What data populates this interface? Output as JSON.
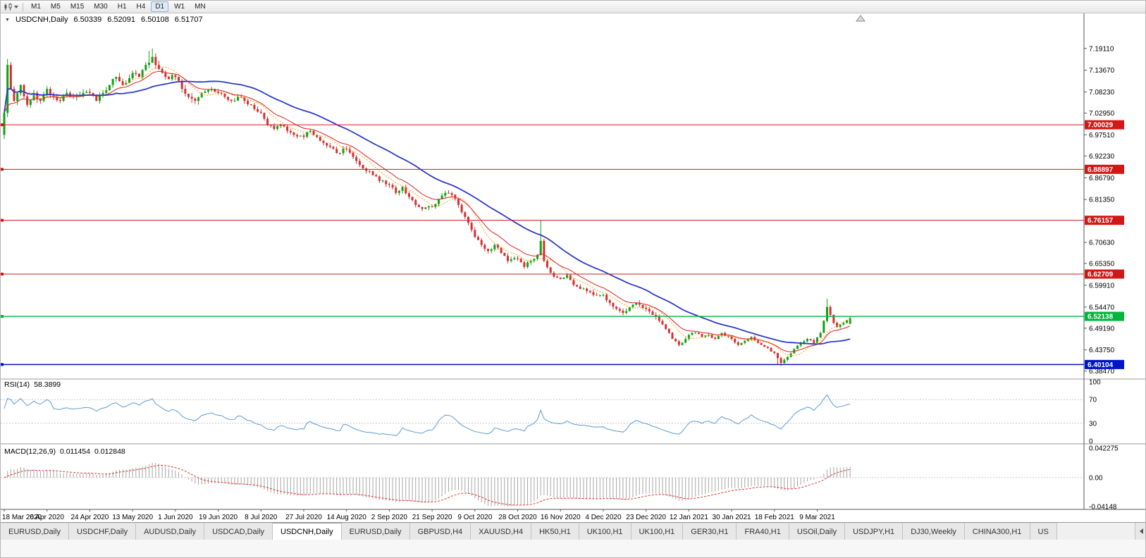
{
  "toolbar": {
    "timeframes": [
      "M1",
      "M5",
      "M15",
      "M30",
      "H1",
      "H4",
      "D1",
      "W1",
      "MN"
    ],
    "active": "D1"
  },
  "chart": {
    "title": "USDCNH,Daily",
    "ohlc": {
      "open": "6.50339",
      "high": "6.52091",
      "low": "6.50108",
      "close": "6.51707"
    },
    "icons": {
      "collapse": "▼"
    },
    "colors": {
      "up": "#12A112",
      "down": "#D43030",
      "axis_text": "#000000",
      "background": "#FFFFFF"
    },
    "y_axis_ticks": [
      "7.19110",
      "7.13670",
      "7.08230",
      "7.02950",
      "6.97510",
      "6.92230",
      "6.86790",
      "6.81350",
      "6.70630",
      "6.65350",
      "6.59910",
      "6.54470",
      "6.49190",
      "6.43750",
      "6.38470"
    ],
    "h_lines": [
      {
        "label": "7.00029",
        "price": 7.00029,
        "color": "#D01818",
        "width": 1
      },
      {
        "label": "6.88897",
        "price": 6.88897,
        "color": "#D01818",
        "width": 1
      },
      {
        "label": "6.76157",
        "price": 6.76157,
        "color": "#D01818",
        "width": 1
      },
      {
        "label": "6.62709",
        "price": 6.62709,
        "color": "#D01818",
        "width": 1
      },
      {
        "label": "6.52138",
        "price": 6.52138,
        "color": "#00B43C",
        "width": 1.4
      },
      {
        "label": "6.40104",
        "price": 6.40104,
        "color": "#0014C8",
        "width": 1.4
      }
    ],
    "x_labels": [
      {
        "label": "18 Mar 2020",
        "bar": 0
      },
      {
        "label": "6 Apr 2020",
        "bar": 13
      },
      {
        "label": "24 Apr 2020",
        "bar": 26
      },
      {
        "label": "13 May 2020",
        "bar": 39
      },
      {
        "label": "1 Jun 2020",
        "bar": 52
      },
      {
        "label": "19 Jun 2020",
        "bar": 65
      },
      {
        "label": "8 Jul 2020",
        "bar": 78
      },
      {
        "label": "27 Jul 2020",
        "bar": 91
      },
      {
        "label": "14 Aug 2020",
        "bar": 104
      },
      {
        "label": "2 Sep 2020",
        "bar": 117
      },
      {
        "label": "21 Sep 2020",
        "bar": 130
      },
      {
        "label": "9 Oct 2020",
        "bar": 143
      },
      {
        "label": "28 Oct 2020",
        "bar": 156
      },
      {
        "label": "16 Nov 2020",
        "bar": 169
      },
      {
        "label": "4 Dec 2020",
        "bar": 182
      },
      {
        "label": "23 Dec 2020",
        "bar": 195
      },
      {
        "label": "12 Jan 2021",
        "bar": 208
      },
      {
        "label": "30 Jan 2021",
        "bar": 221
      },
      {
        "label": "18 Feb 2021",
        "bar": 234
      },
      {
        "label": "9 Mar 2021",
        "bar": 247
      }
    ]
  },
  "chart_data": {
    "type": "candlestick",
    "symbol": "USDCNH",
    "period": "Daily",
    "bars": 258,
    "last_ohlc": {
      "open": 6.50339,
      "high": 6.52091,
      "low": 6.50108,
      "close": 6.51707
    },
    "horizontal_levels": [
      7.00029,
      6.88897,
      6.76157,
      6.62709,
      6.52138,
      6.40104
    ],
    "price_anchors": [
      [
        0,
        7.03
      ],
      [
        1,
        7.15
      ],
      [
        2,
        7.09
      ],
      [
        3,
        7.06
      ],
      [
        5,
        7.1
      ],
      [
        7,
        7.05
      ],
      [
        9,
        7.08
      ],
      [
        11,
        7.06
      ],
      [
        13,
        7.09
      ],
      [
        15,
        7.07
      ],
      [
        17,
        7.06
      ],
      [
        19,
        7.08
      ],
      [
        21,
        7.07
      ],
      [
        24,
        7.08
      ],
      [
        26,
        7.08
      ],
      [
        28,
        7.06
      ],
      [
        30,
        7.08
      ],
      [
        32,
        7.1
      ],
      [
        34,
        7.12
      ],
      [
        36,
        7.1
      ],
      [
        39,
        7.13
      ],
      [
        41,
        7.12
      ],
      [
        43,
        7.15
      ],
      [
        45,
        7.17
      ],
      [
        47,
        7.14
      ],
      [
        49,
        7.12
      ],
      [
        52,
        7.12
      ],
      [
        54,
        7.09
      ],
      [
        56,
        7.07
      ],
      [
        58,
        7.06
      ],
      [
        60,
        7.08
      ],
      [
        63,
        7.09
      ],
      [
        65,
        7.08
      ],
      [
        67,
        7.07
      ],
      [
        69,
        7.06
      ],
      [
        71,
        7.07
      ],
      [
        73,
        7.06
      ],
      [
        75,
        7.05
      ],
      [
        78,
        7.03
      ],
      [
        80,
        7.0
      ],
      [
        82,
        6.99
      ],
      [
        84,
        7.0
      ],
      [
        86,
        6.985
      ],
      [
        88,
        6.975
      ],
      [
        91,
        6.97
      ],
      [
        93,
        6.985
      ],
      [
        95,
        6.97
      ],
      [
        97,
        6.955
      ],
      [
        99,
        6.945
      ],
      [
        101,
        6.93
      ],
      [
        104,
        6.94
      ],
      [
        106,
        6.92
      ],
      [
        108,
        6.9
      ],
      [
        110,
        6.885
      ],
      [
        112,
        6.875
      ],
      [
        114,
        6.86
      ],
      [
        117,
        6.85
      ],
      [
        119,
        6.83
      ],
      [
        121,
        6.845
      ],
      [
        123,
        6.82
      ],
      [
        125,
        6.8
      ],
      [
        127,
        6.79
      ],
      [
        130,
        6.795
      ],
      [
        132,
        6.815
      ],
      [
        134,
        6.83
      ],
      [
        136,
        6.825
      ],
      [
        138,
        6.8
      ],
      [
        140,
        6.77
      ],
      [
        143,
        6.72
      ],
      [
        145,
        6.7
      ],
      [
        147,
        6.685
      ],
      [
        149,
        6.7
      ],
      [
        151,
        6.68
      ],
      [
        153,
        6.66
      ],
      [
        156,
        6.665
      ],
      [
        158,
        6.645
      ],
      [
        160,
        6.66
      ],
      [
        162,
        6.675
      ],
      [
        163,
        6.71
      ],
      [
        164,
        6.66
      ],
      [
        166,
        6.63
      ],
      [
        169,
        6.615
      ],
      [
        171,
        6.625
      ],
      [
        173,
        6.6
      ],
      [
        175,
        6.59
      ],
      [
        177,
        6.585
      ],
      [
        179,
        6.575
      ],
      [
        182,
        6.575
      ],
      [
        184,
        6.555
      ],
      [
        186,
        6.54
      ],
      [
        188,
        6.53
      ],
      [
        190,
        6.545
      ],
      [
        192,
        6.555
      ],
      [
        195,
        6.54
      ],
      [
        197,
        6.525
      ],
      [
        199,
        6.51
      ],
      [
        201,
        6.49
      ],
      [
        203,
        6.465
      ],
      [
        205,
        6.45
      ],
      [
        207,
        6.465
      ],
      [
        208,
        6.475
      ],
      [
        210,
        6.48
      ],
      [
        212,
        6.47
      ],
      [
        214,
        6.475
      ],
      [
        216,
        6.465
      ],
      [
        218,
        6.48
      ],
      [
        221,
        6.465
      ],
      [
        223,
        6.45
      ],
      [
        225,
        6.46
      ],
      [
        227,
        6.47
      ],
      [
        229,
        6.455
      ],
      [
        231,
        6.445
      ],
      [
        234,
        6.43
      ],
      [
        236,
        6.405
      ],
      [
        238,
        6.42
      ],
      [
        240,
        6.44
      ],
      [
        242,
        6.455
      ],
      [
        244,
        6.465
      ],
      [
        246,
        6.455
      ],
      [
        248,
        6.48
      ],
      [
        249,
        6.51
      ],
      [
        250,
        6.545
      ],
      [
        251,
        6.525
      ],
      [
        252,
        6.505
      ],
      [
        253,
        6.495
      ],
      [
        255,
        6.505
      ],
      [
        257,
        6.517
      ]
    ],
    "spikes": [
      {
        "bar": 1,
        "high": 7.165,
        "low": 7.02
      },
      {
        "bar": 44,
        "high": 7.185
      },
      {
        "bar": 45,
        "high": 7.191
      },
      {
        "bar": 163,
        "high": 6.762
      },
      {
        "bar": 235,
        "low": 6.401
      },
      {
        "bar": 236,
        "low": 6.398
      },
      {
        "bar": 250,
        "high": 6.565
      }
    ],
    "moving_averages": [
      {
        "name": "mid-ma-orange",
        "method": "sma",
        "period": 8,
        "color": "#FF9900",
        "width": 1,
        "dash": "2,2"
      },
      {
        "name": "fast-ma-red",
        "method": "ema",
        "period": 13,
        "color": "#E03030",
        "width": 1.1,
        "dash": null
      },
      {
        "name": "slow-ma-blue",
        "method": "sma",
        "period": 34,
        "color": "#2B3BC8",
        "width": 1.8,
        "dash": null
      }
    ],
    "rsi": {
      "period": 14,
      "value": 58.3899,
      "color": "#5B9BD5",
      "levels": [
        70,
        30
      ],
      "range": [
        0,
        100
      ]
    },
    "macd": {
      "fast": 12,
      "slow": 26,
      "signal": 9,
      "value": 0.011454,
      "signal_value": 0.012848,
      "range": [
        0.042275,
        -0.04148
      ],
      "hist_color": "#A6A6A6",
      "signal_color": "#E03030"
    }
  },
  "rsi_panel": {
    "name": "RSI(14)",
    "value": "58.3899",
    "levels": [
      "100",
      "70",
      "30",
      "0"
    ]
  },
  "macd_panel": {
    "name": "MACD(12,26,9)",
    "value_main": "0.011454",
    "value_signal": "0.012848",
    "axis_labels": [
      "0.042275",
      "0.00",
      "-0.04148"
    ]
  },
  "tabs": {
    "items": [
      "EURUSD,Daily",
      "USDCHF,Daily",
      "AUDUSD,Daily",
      "USDCAD,Daily",
      "USDCNH,Daily",
      "EURUSD,Daily",
      "GBPUSD,H4",
      "XAUUSD,H4",
      "HK50,H1",
      "UK100,H1",
      "UK100,H1",
      "GER30,H1",
      "FRA40,H1",
      "USOil,Daily",
      "USDJPY,H1",
      "DJ30,Weekly",
      "CHINA300,H1",
      "US"
    ],
    "active_index": 4
  }
}
